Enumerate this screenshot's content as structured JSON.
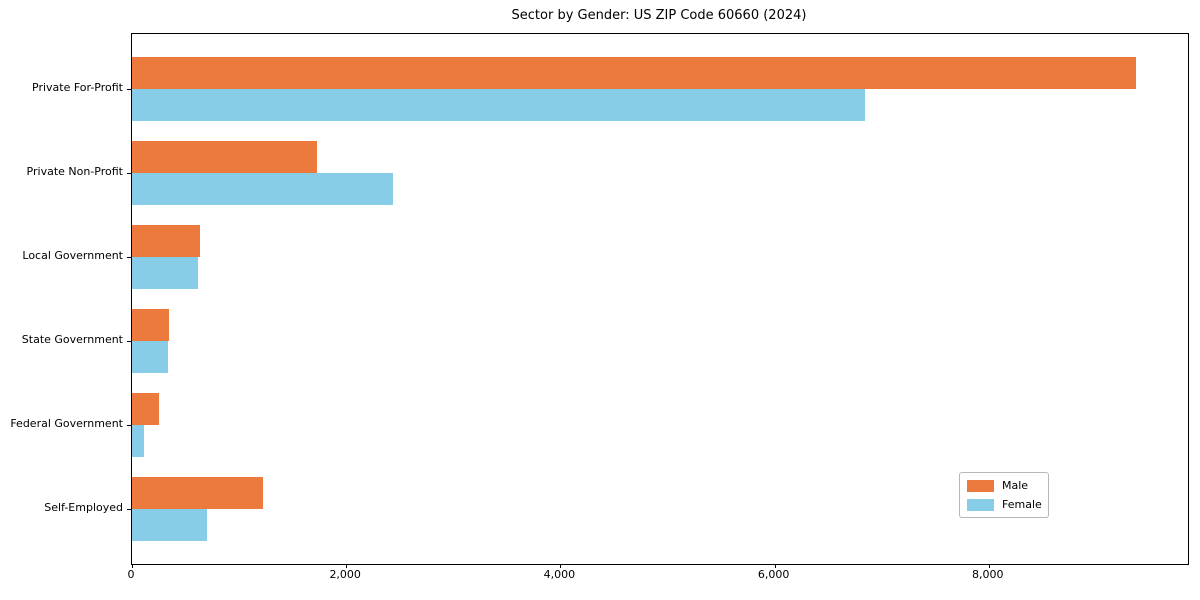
{
  "title": "Sector by Gender: US ZIP Code 60660 (2024)",
  "colors": {
    "male": "#EC7A3C",
    "female": "#87CDE8",
    "spine": "#000000",
    "legend_border": "#b7b7b7",
    "background": "#ffffff"
  },
  "legend": {
    "position": "lower right",
    "entries": [
      {
        "label": "Male",
        "color": "#EC7A3C"
      },
      {
        "label": "Female",
        "color": "#87CDE8"
      }
    ]
  },
  "chart_data": {
    "type": "bar",
    "orientation": "horizontal",
    "title": "Sector by Gender: US ZIP Code 60660 (2024)",
    "categories": [
      "Private For-Profit",
      "Private Non-Profit",
      "Local Government",
      "State Government",
      "Federal Government",
      "Self-Employed"
    ],
    "series": [
      {
        "name": "Male",
        "color": "#EC7A3C",
        "values": [
          9370,
          1730,
          635,
          345,
          250,
          1220
        ]
      },
      {
        "name": "Female",
        "color": "#87CDE8",
        "values": [
          6840,
          2440,
          615,
          335,
          115,
          700
        ]
      }
    ],
    "xlabel": "",
    "ylabel": "",
    "xlim": [
      0,
      9860
    ],
    "x_ticks": [
      0,
      2000,
      4000,
      6000,
      8000
    ],
    "x_tick_labels": [
      "0",
      "2,000",
      "4,000",
      "6,000",
      "8,000"
    ],
    "grid": false,
    "legend_position": "lower right"
  }
}
